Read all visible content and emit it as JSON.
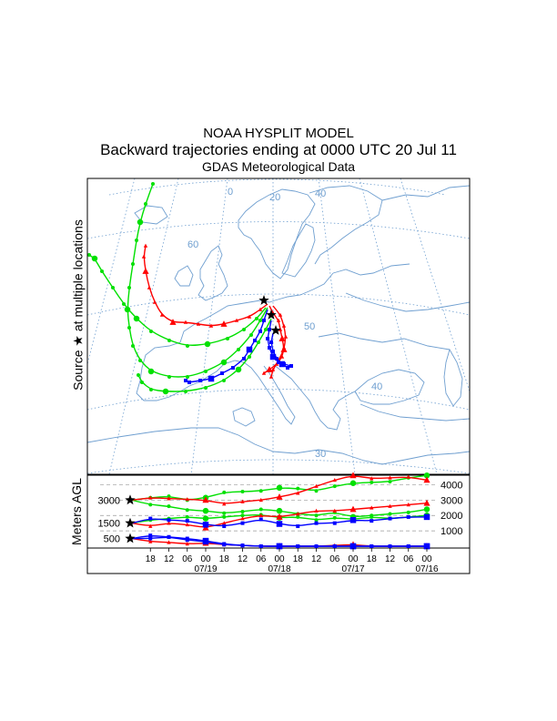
{
  "header": {
    "model": "NOAA HYSPLIT MODEL",
    "title": "Backward trajectories ending at 0000 UTC 20 Jul 11",
    "data_source": "GDAS Meteorological Data"
  },
  "map": {
    "source_label_pre": "Source",
    "source_label_post": "at multiple locations",
    "lat_labels": [
      "60",
      "50",
      "40",
      "30"
    ],
    "lon_labels": [
      "0",
      "20",
      "40"
    ]
  },
  "colors": {
    "red": "#ff0000",
    "green": "#00e000",
    "blue": "#0000ff",
    "coast": "#6f9fd0"
  },
  "agl": {
    "ylabel": "Meters AGL",
    "left_levels": [
      "3000",
      "1500",
      "500"
    ],
    "right_ticks": [
      "4000",
      "3000",
      "2000",
      "1000"
    ],
    "hour_labels": [
      "18",
      "12",
      "06",
      "00",
      "18",
      "12",
      "06",
      "00",
      "18",
      "12",
      "06",
      "00",
      "18",
      "12",
      "06",
      "00"
    ],
    "date_labels": [
      "07/19",
      "07/18",
      "07/17",
      "07/16"
    ]
  },
  "chart_data": {
    "type": "line",
    "title": "Backward trajectories ending at 0000 UTC 20 Jul 11",
    "ylabel": "Meters AGL",
    "xlabel": "",
    "ylim": [
      0,
      4500
    ],
    "hours_back": [
      0,
      6,
      12,
      18,
      24,
      30,
      36,
      42,
      48,
      54,
      60,
      66,
      72,
      78,
      84,
      90,
      96
    ],
    "series": [
      {
        "name": "",
        "color": "green",
        "values": [
          3000,
          3150,
          3250,
          3000,
          3150,
          3500,
          3550,
          3600,
          3800,
          3750,
          3600,
          3900,
          4100,
          4150,
          4200,
          4450,
          4600
        ]
      },
      {
        "name": "",
        "color": "green",
        "values": [
          3000,
          2700,
          2600,
          2350,
          2300,
          2150,
          2250,
          2400,
          2300,
          2100,
          2000,
          2200,
          1900,
          2000,
          2100,
          2200,
          2400
        ]
      },
      {
        "name": "",
        "color": "green",
        "values": [
          1500,
          1700,
          1800,
          1900,
          1800,
          1900,
          2000,
          2050,
          1850,
          1900,
          1700,
          1850,
          1750,
          1900,
          1800,
          1900,
          2000
        ]
      },
      {
        "name": "",
        "color": "red",
        "values": [
          3000,
          3150,
          3100,
          3050,
          3000,
          2750,
          2900,
          3000,
          3200,
          3450,
          3900,
          4300,
          4600,
          4400,
          4450,
          4500,
          4300
        ]
      },
      {
        "name": "",
        "color": "red",
        "values": [
          1500,
          1300,
          1500,
          1400,
          1200,
          1500,
          1800,
          2000,
          1900,
          2100,
          2300,
          2300,
          2400,
          2500,
          2600,
          2700,
          2800
        ]
      },
      {
        "name": "",
        "color": "red",
        "values": [
          500,
          300,
          250,
          150,
          200,
          100,
          50,
          0,
          0,
          0,
          0,
          50,
          100,
          0,
          0,
          0,
          0
        ]
      },
      {
        "name": "",
        "color": "blue",
        "values": [
          1500,
          1800,
          1700,
          1650,
          1400,
          1300,
          1500,
          1750,
          1450,
          1300,
          1500,
          1500,
          1700,
          1650,
          1800,
          1900,
          1900
        ]
      },
      {
        "name": "",
        "color": "blue",
        "values": [
          500,
          700,
          600,
          500,
          350,
          150,
          50,
          0,
          0,
          0,
          0,
          0,
          0,
          0,
          0,
          0,
          0
        ]
      },
      {
        "name": "",
        "color": "blue",
        "values": [
          500,
          500,
          600,
          400,
          300,
          100,
          50,
          0,
          0,
          0,
          0,
          0,
          0,
          0,
          0,
          0,
          0
        ]
      }
    ]
  }
}
